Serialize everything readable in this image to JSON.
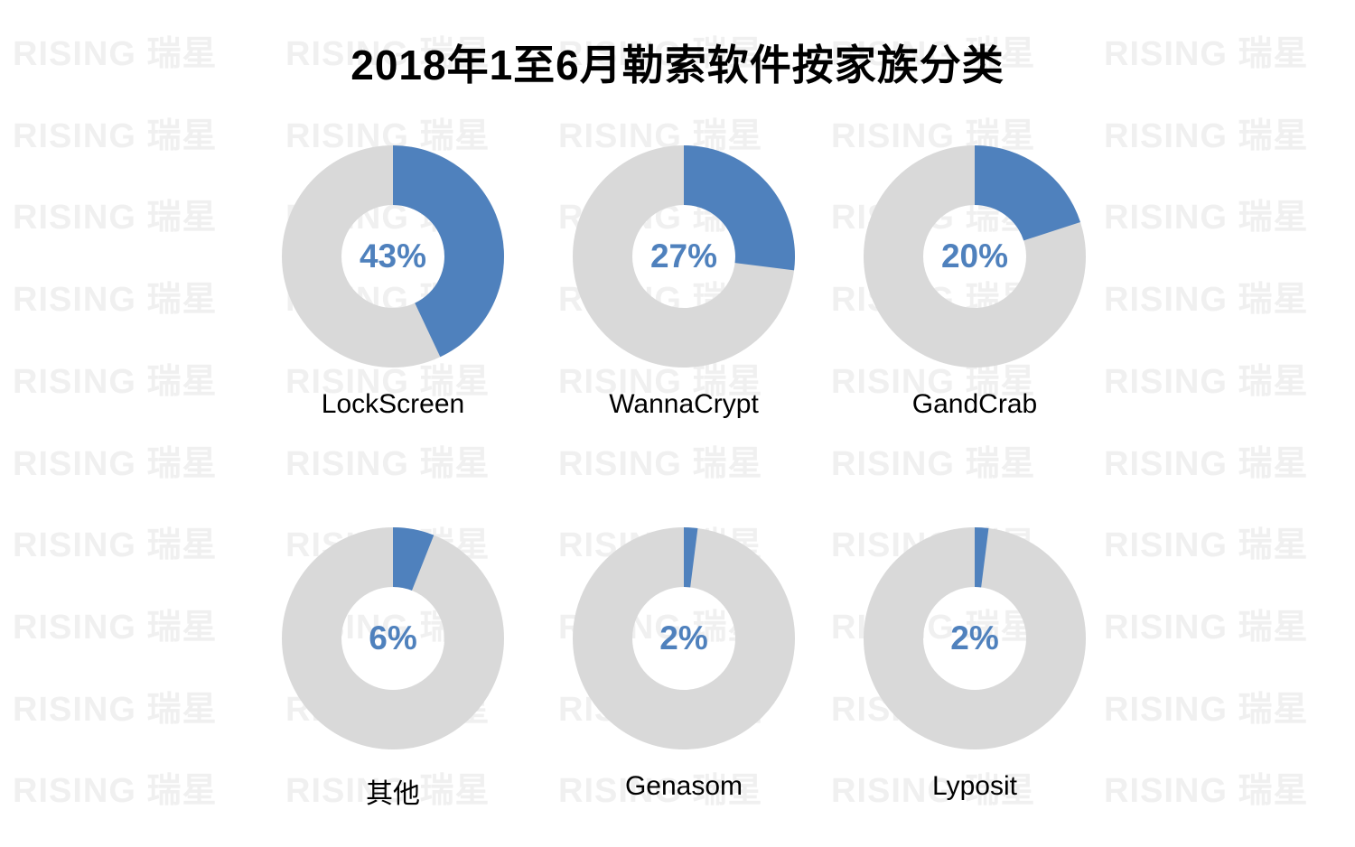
{
  "watermark": {
    "text": "RISING 瑞星",
    "color": "#F0F0F0"
  },
  "chart_data": {
    "type": "pie",
    "donut": true,
    "title": "2018年1至6月勒索软件按家族分类",
    "unit": "%",
    "legend_position": "none",
    "palette": {
      "slice": "#4F81BD",
      "remainder": "#D9D9D9",
      "value_label": "#4F81BD",
      "category_label": "#000000",
      "title_color": "#000000"
    },
    "charts": [
      {
        "label": "LockScreen",
        "value": 43,
        "value_text": "43%"
      },
      {
        "label": "WannaCrypt",
        "value": 27,
        "value_text": "27%"
      },
      {
        "label": "GandCrab",
        "value": 20,
        "value_text": "20%"
      },
      {
        "label": "其他",
        "value": 6,
        "value_text": "6%"
      },
      {
        "label": "Genasom",
        "value": 2,
        "value_text": "2%"
      },
      {
        "label": "Lyposit",
        "value": 2,
        "value_text": "2%"
      }
    ]
  }
}
